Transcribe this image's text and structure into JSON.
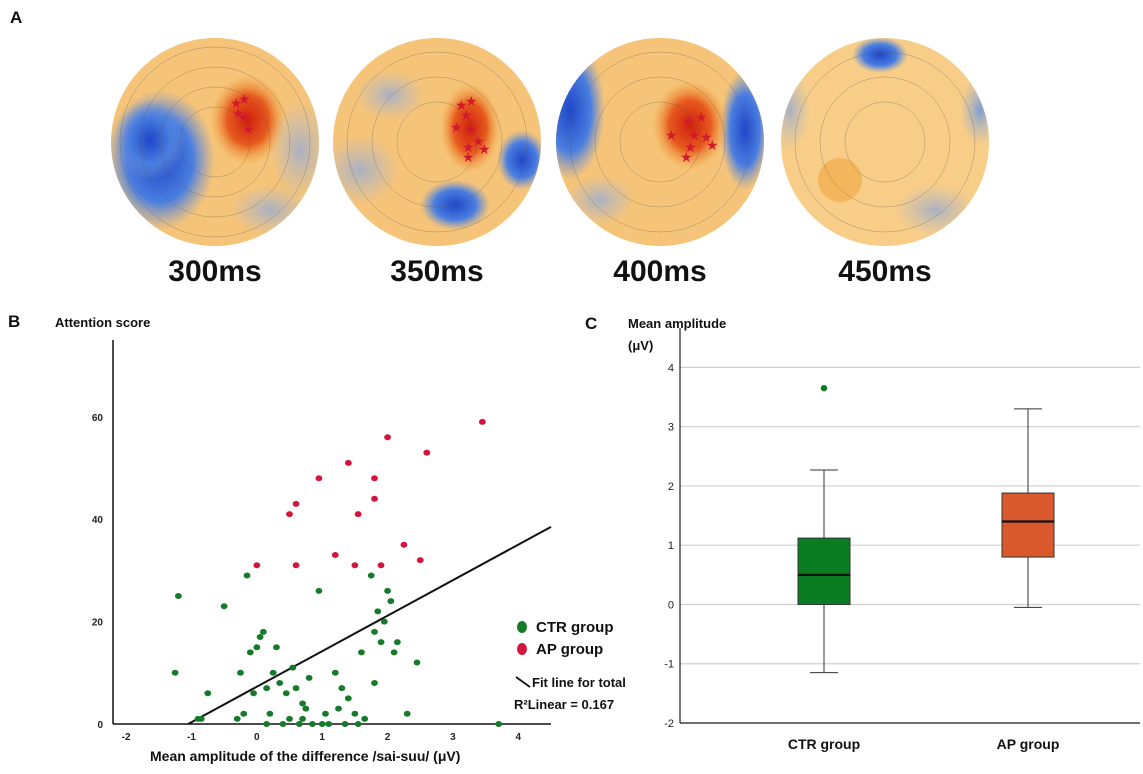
{
  "panels": {
    "a": "A",
    "b": "B",
    "c": "C"
  },
  "topomaps": [
    {
      "label": "300ms"
    },
    {
      "label": "350ms"
    },
    {
      "label": "400ms"
    },
    {
      "label": "450ms"
    }
  ],
  "colors": {
    "ctr": "#157a2a",
    "ap": "#d3143e",
    "ctr_box": "#0a7d22",
    "ap_box": "#d9582c",
    "negative_map": "#2f63d6",
    "positive_map": "#f0a83a",
    "peak_map": "#e02a1a",
    "electrode": "#d11a2a"
  },
  "chart_data": [
    {
      "type": "scatter",
      "ylabel": "Attention score",
      "xlabel": "Mean amplitude of the difference /sai-suu/ (μV)",
      "xlim": [
        -2.2,
        4.5
      ],
      "ylim": [
        0,
        75
      ],
      "xticks": [
        -2,
        -1,
        0,
        1,
        2,
        3,
        4
      ],
      "yticks": [
        0,
        20,
        40,
        60
      ],
      "legend_position": "right",
      "series": [
        {
          "name": "CTR group",
          "points": [
            [
              -1.25,
              10
            ],
            [
              -1.2,
              25
            ],
            [
              -0.9,
              1
            ],
            [
              -0.85,
              1
            ],
            [
              -0.75,
              6
            ],
            [
              -0.5,
              23
            ],
            [
              -0.3,
              1
            ],
            [
              -0.25,
              10
            ],
            [
              -0.2,
              2
            ],
            [
              -0.15,
              29
            ],
            [
              -0.1,
              14
            ],
            [
              -0.05,
              6
            ],
            [
              0.0,
              15
            ],
            [
              0.05,
              17
            ],
            [
              0.1,
              18
            ],
            [
              0.15,
              0
            ],
            [
              0.15,
              7
            ],
            [
              0.2,
              2
            ],
            [
              0.25,
              10
            ],
            [
              0.3,
              15
            ],
            [
              0.35,
              8
            ],
            [
              0.4,
              0
            ],
            [
              0.45,
              6
            ],
            [
              0.5,
              1
            ],
            [
              0.55,
              11
            ],
            [
              0.6,
              7
            ],
            [
              0.65,
              0
            ],
            [
              0.7,
              1
            ],
            [
              0.7,
              4
            ],
            [
              0.75,
              3
            ],
            [
              0.8,
              9
            ],
            [
              0.85,
              0
            ],
            [
              0.95,
              26
            ],
            [
              1.0,
              0
            ],
            [
              1.05,
              2
            ],
            [
              1.1,
              0
            ],
            [
              1.2,
              10
            ],
            [
              1.25,
              3
            ],
            [
              1.3,
              7
            ],
            [
              1.35,
              0
            ],
            [
              1.4,
              5
            ],
            [
              1.5,
              2
            ],
            [
              1.55,
              0
            ],
            [
              1.6,
              14
            ],
            [
              1.65,
              1
            ],
            [
              1.75,
              29
            ],
            [
              1.8,
              18
            ],
            [
              1.8,
              8
            ],
            [
              1.85,
              22
            ],
            [
              1.9,
              16
            ],
            [
              1.95,
              20
            ],
            [
              2.0,
              26
            ],
            [
              2.05,
              24
            ],
            [
              2.1,
              14
            ],
            [
              2.15,
              16
            ],
            [
              2.3,
              2
            ],
            [
              2.45,
              12
            ],
            [
              3.7,
              0
            ]
          ]
        },
        {
          "name": "AP group",
          "points": [
            [
              0.0,
              31
            ],
            [
              0.5,
              41
            ],
            [
              0.6,
              43
            ],
            [
              0.6,
              31
            ],
            [
              0.95,
              48
            ],
            [
              1.2,
              33
            ],
            [
              1.4,
              51
            ],
            [
              1.5,
              31
            ],
            [
              1.55,
              41
            ],
            [
              1.8,
              48
            ],
            [
              1.8,
              44
            ],
            [
              1.9,
              31
            ],
            [
              2.0,
              56
            ],
            [
              2.25,
              35
            ],
            [
              2.5,
              32
            ],
            [
              2.6,
              53
            ],
            [
              3.45,
              59
            ]
          ]
        }
      ],
      "fit_line": {
        "label": "Fit line for total",
        "r2_label": "R²Linear = 0.167",
        "x": [
          -1.05,
          4.5
        ],
        "y": [
          0,
          38.5
        ]
      }
    },
    {
      "type": "box",
      "ylabel_line1": "Mean amplitude",
      "ylabel_line2": "(μV)",
      "ylim": [
        -2,
        4.8
      ],
      "yticks": [
        -2,
        -1,
        0,
        1,
        2,
        3,
        4
      ],
      "grid": true,
      "groups": [
        {
          "name": "CTR group",
          "whisker_low": -1.15,
          "q1": 0.0,
          "median": 0.5,
          "q3": 1.12,
          "whisker_high": 2.27,
          "outliers": [
            3.65
          ]
        },
        {
          "name": "AP group",
          "whisker_low": -0.05,
          "q1": 0.8,
          "median": 1.4,
          "q3": 1.88,
          "whisker_high": 3.3,
          "outliers": []
        }
      ]
    }
  ]
}
